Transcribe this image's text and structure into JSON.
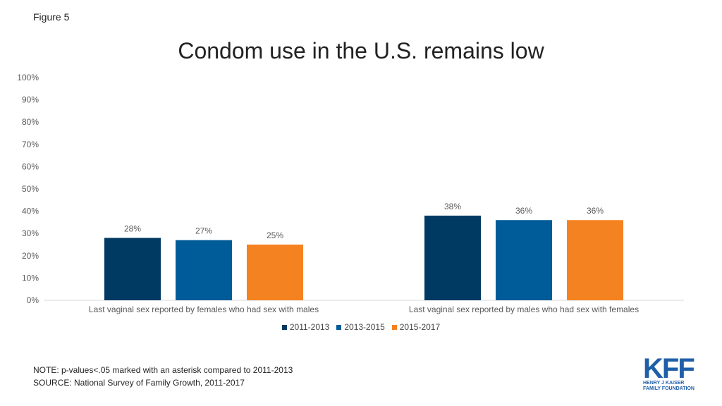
{
  "figure_label": "Figure 5",
  "title": "Condom use in the U.S. remains low",
  "notes": {
    "note": "NOTE: p-values<.05  marked with an asterisk compared to 2011-2013",
    "source": "SOURCE: National Survey of Family Growth, 2011-2017"
  },
  "logo": {
    "mark": "KFF",
    "line1": "HENRY J KAISER",
    "line2": "FAMILY FOUNDATION"
  },
  "chart_data": {
    "type": "bar",
    "categories": [
      "Last vaginal sex reported by females who had sex with males",
      "Last vaginal sex reported by males who had sex with females"
    ],
    "series": [
      {
        "name": "2011-2013",
        "color": "#003A63",
        "values": [
          28,
          38
        ]
      },
      {
        "name": "2013-2015",
        "color": "#005B99",
        "values": [
          27,
          36
        ]
      },
      {
        "name": "2015-2017",
        "color": "#F58220",
        "values": [
          25,
          36
        ]
      }
    ],
    "data_labels": [
      [
        "28%",
        "38%"
      ],
      [
        "27%",
        "36%"
      ],
      [
        "25%",
        "36%"
      ]
    ],
    "yticks": [
      "0%",
      "10%",
      "20%",
      "30%",
      "40%",
      "50%",
      "60%",
      "70%",
      "80%",
      "90%",
      "100%"
    ],
    "ylim": [
      0,
      100
    ],
    "grid": false,
    "legend_position": "bottom"
  }
}
